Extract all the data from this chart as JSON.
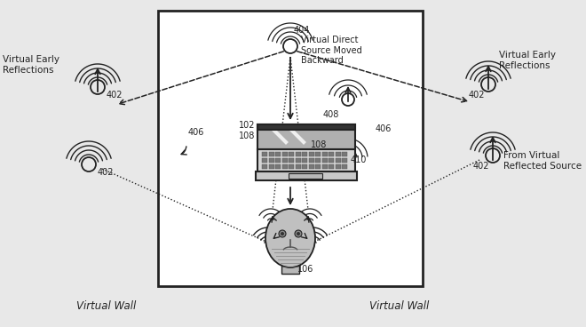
{
  "bg_color": "#e8e8e8",
  "inner_bg": "#ffffff",
  "line_color": "#222222",
  "border_color": "#222222",
  "text_color": "#222222",
  "fig_width": 6.6,
  "fig_height": 3.68,
  "dpi": 100,
  "labels": {
    "virtual_wall_left": "Virtual Wall",
    "virtual_wall_right": "Virtual Wall",
    "virtual_early_refl_left": "Virtual Early\nReflections",
    "virtual_early_refl_right": "Virtual Early\nReflections",
    "virtual_direct": "Virtual Direct\nSource Moved\nBackward",
    "from_virtual": "From Virtual\nReflected Source",
    "ref_404": "404",
    "ref_408": "408",
    "ref_406_left": "406",
    "ref_406_right": "406",
    "ref_402_tl": "402",
    "ref_402_bl": "402",
    "ref_402_tr": "402",
    "ref_402_br": "402",
    "ref_102": "102",
    "ref_108_left": "108",
    "ref_108_right": "108",
    "ref_410": "410",
    "ref_106": "106"
  }
}
